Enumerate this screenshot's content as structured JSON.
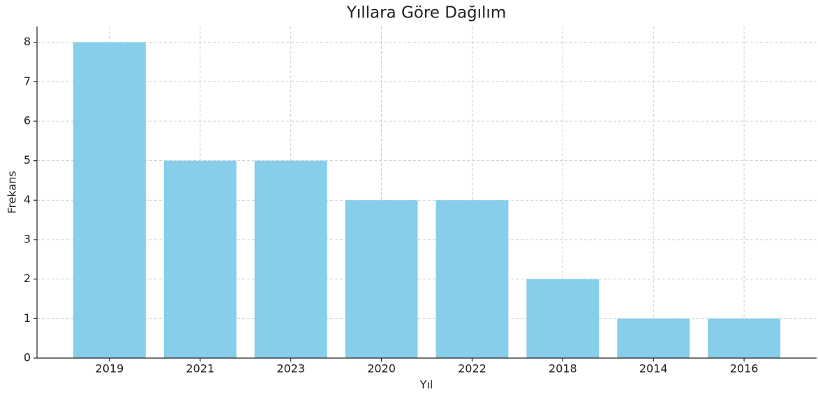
{
  "chart_data": {
    "type": "bar",
    "title": "Yıllara Göre Dağılım",
    "x_label": "Yıl",
    "y_label": "Frekans",
    "categories": [
      "2019",
      "2021",
      "2023",
      "2020",
      "2022",
      "2018",
      "2014",
      "2016"
    ],
    "values": [
      8,
      5,
      5,
      4,
      4,
      2,
      1,
      1
    ],
    "color": "#87ceeb",
    "ylim": [
      0,
      8.4
    ],
    "yticks": [
      0,
      1,
      2,
      3,
      4,
      5,
      6,
      7,
      8
    ],
    "grid": true
  }
}
